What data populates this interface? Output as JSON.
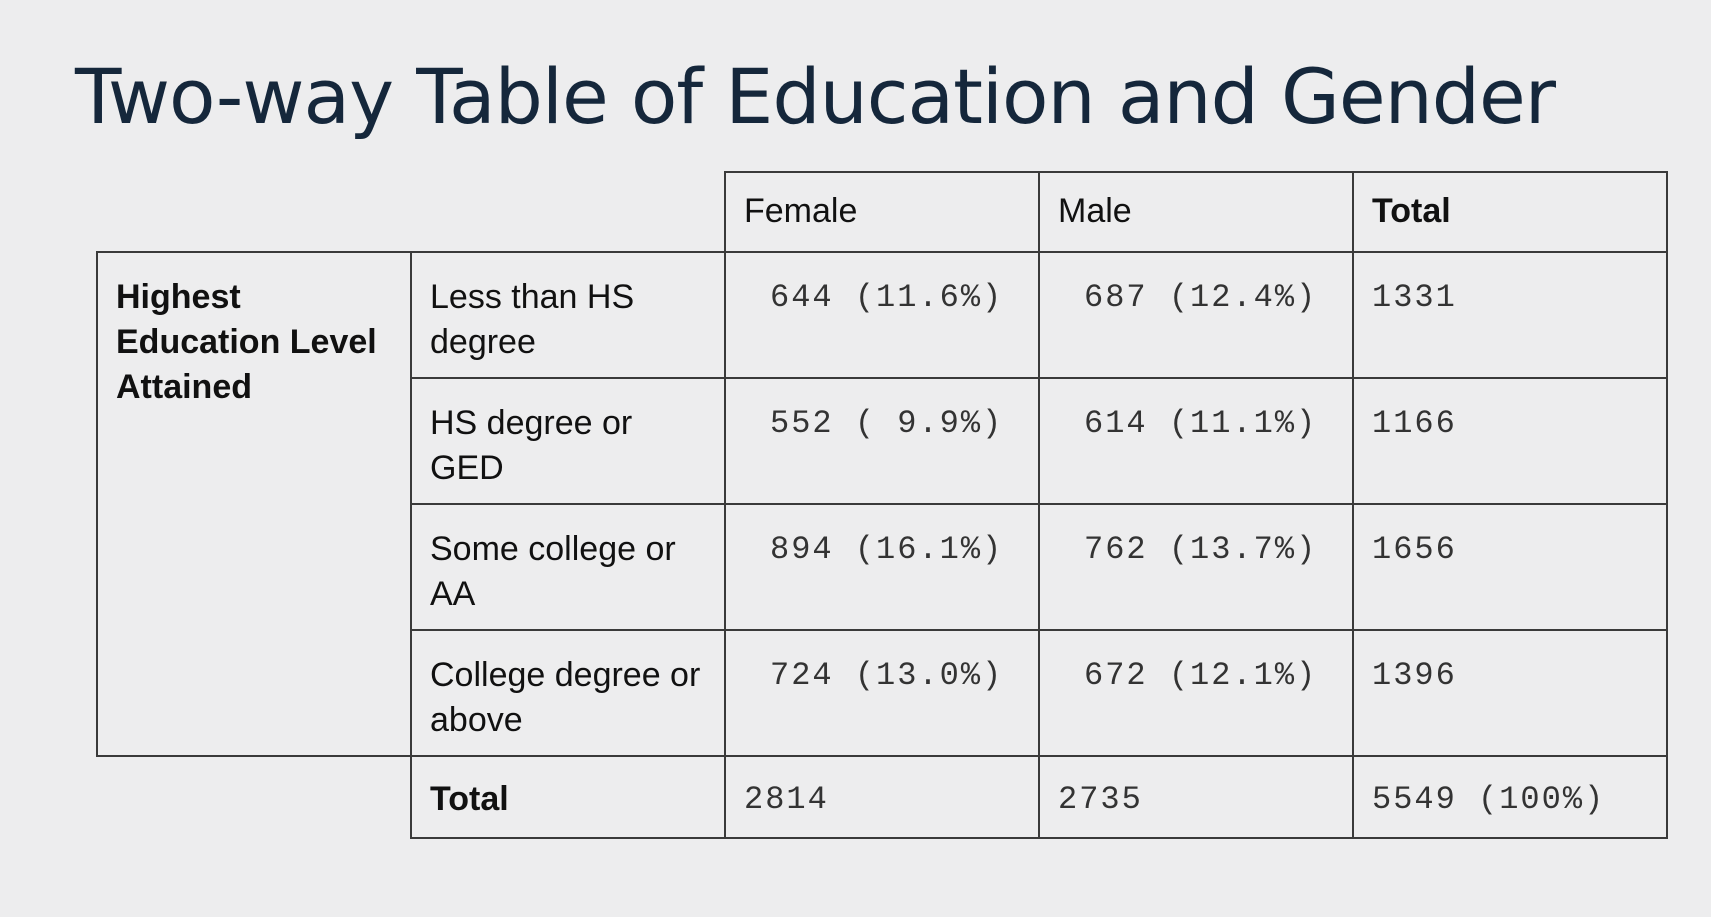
{
  "title": "Two-way Table of Education and Gender",
  "table": {
    "columns": [
      "Female",
      "Male",
      "Total"
    ],
    "row_group_label": "Highest Education Level Attained",
    "rows": [
      {
        "label": "Less than HS degree",
        "female": "644 (11.6%)",
        "male": "687 (12.4%)",
        "total": "1331"
      },
      {
        "label": "HS degree or GED",
        "female": "552 ( 9.9%)",
        "male": "614 (11.1%)",
        "total": "1166"
      },
      {
        "label": "Some college or AA",
        "female": "894 (16.1%)",
        "male": "762 (13.7%)",
        "total": "1656"
      },
      {
        "label": "College degree or above",
        "female": "724 (13.0%)",
        "male": "672 (12.1%)",
        "total": "1396"
      }
    ],
    "total_row": {
      "label": "Total",
      "female": "2814",
      "male": "2735",
      "total": "5549 (100%)"
    }
  }
}
